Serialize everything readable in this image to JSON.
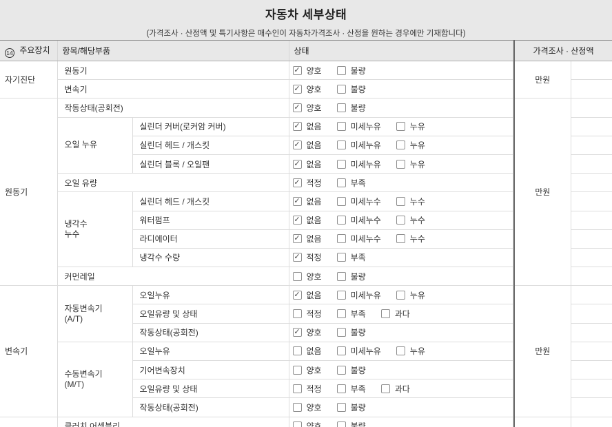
{
  "page": {
    "title": "자동차 세부상태",
    "subtitle": "(가격조사 · 산정액 및 특기사항은 매수인이 자동차가격조사 · 산정을 원하는 경우에만 기재합니다)"
  },
  "colors": {
    "page_background": "#e8e8e8",
    "cell_border": "#dcdcdc",
    "price_divider": "#666666"
  },
  "table": {
    "headers": {
      "device_badge": "14",
      "device": "주요장치",
      "item": "항목/해당부품",
      "status": "상태",
      "price": "가격조사 · 산정액"
    },
    "sections": [
      {
        "device": "자기진단",
        "price_unit": "만원",
        "rows": [
          {
            "item": "원동기",
            "options": [
              {
                "label": "양호",
                "checked": true
              },
              {
                "label": "불량",
                "checked": false
              }
            ]
          },
          {
            "item": "변속기",
            "options": [
              {
                "label": "양호",
                "checked": true
              },
              {
                "label": "불량",
                "checked": false
              }
            ]
          }
        ]
      },
      {
        "device": "원동기",
        "price_unit": "만원",
        "rows": [
          {
            "item": "작동상태(공회전)",
            "options": [
              {
                "label": "양호",
                "checked": true
              },
              {
                "label": "불량",
                "checked": false
              }
            ]
          },
          {
            "group": "오일 누유",
            "group_span": 3,
            "item": "실린더 커버(로커암 커버)",
            "options": [
              {
                "label": "없음",
                "checked": true
              },
              {
                "label": "미세누유",
                "checked": false
              },
              {
                "label": "누유",
                "checked": false
              }
            ]
          },
          {
            "item": "실린더 헤드 / 개스킷",
            "options": [
              {
                "label": "없음",
                "checked": true
              },
              {
                "label": "미세누유",
                "checked": false
              },
              {
                "label": "누유",
                "checked": false
              }
            ]
          },
          {
            "item": "실린더 블록 / 오일팬",
            "options": [
              {
                "label": "없음",
                "checked": true
              },
              {
                "label": "미세누유",
                "checked": false
              },
              {
                "label": "누유",
                "checked": false
              }
            ]
          },
          {
            "item": "오일 유량",
            "options": [
              {
                "label": "적정",
                "checked": true
              },
              {
                "label": "부족",
                "checked": false
              }
            ]
          },
          {
            "group": "냉각수\n누수",
            "group_span": 4,
            "item": "실린더 헤드 / 개스킷",
            "options": [
              {
                "label": "없음",
                "checked": true
              },
              {
                "label": "미세누수",
                "checked": false
              },
              {
                "label": "누수",
                "checked": false
              }
            ]
          },
          {
            "item": "워터펌프",
            "options": [
              {
                "label": "없음",
                "checked": true
              },
              {
                "label": "미세누수",
                "checked": false
              },
              {
                "label": "누수",
                "checked": false
              }
            ]
          },
          {
            "item": "라디에이터",
            "options": [
              {
                "label": "없음",
                "checked": true
              },
              {
                "label": "미세누수",
                "checked": false
              },
              {
                "label": "누수",
                "checked": false
              }
            ]
          },
          {
            "item": "냉각수 수량",
            "options": [
              {
                "label": "적정",
                "checked": true
              },
              {
                "label": "부족",
                "checked": false
              }
            ]
          },
          {
            "item": "커먼레일",
            "options": [
              {
                "label": "양호",
                "checked": false
              },
              {
                "label": "불량",
                "checked": false
              }
            ]
          }
        ]
      },
      {
        "device": "변속기",
        "price_unit": "만원",
        "rows": [
          {
            "group": "자동변속기\n(A/T)",
            "group_span": 3,
            "item": "오일누유",
            "options": [
              {
                "label": "없음",
                "checked": true
              },
              {
                "label": "미세누유",
                "checked": false
              },
              {
                "label": "누유",
                "checked": false
              }
            ]
          },
          {
            "item": "오일유량 및 상태",
            "options": [
              {
                "label": "적정",
                "checked": false
              },
              {
                "label": "부족",
                "checked": false
              },
              {
                "label": "과다",
                "checked": false
              }
            ]
          },
          {
            "item": "작동상태(공회전)",
            "options": [
              {
                "label": "양호",
                "checked": true
              },
              {
                "label": "불량",
                "checked": false
              }
            ]
          },
          {
            "group": "수동변속기\n(M/T)",
            "group_span": 4,
            "item": "오일누유",
            "options": [
              {
                "label": "없음",
                "checked": false
              },
              {
                "label": "미세누유",
                "checked": false
              },
              {
                "label": "누유",
                "checked": false
              }
            ]
          },
          {
            "item": "기어변속장치",
            "options": [
              {
                "label": "양호",
                "checked": false
              },
              {
                "label": "불량",
                "checked": false
              }
            ]
          },
          {
            "item": "오일유량 및 상태",
            "options": [
              {
                "label": "적정",
                "checked": false
              },
              {
                "label": "부족",
                "checked": false
              },
              {
                "label": "과다",
                "checked": false
              }
            ]
          },
          {
            "item": "작동상태(공회전)",
            "options": [
              {
                "label": "양호",
                "checked": false
              },
              {
                "label": "불량",
                "checked": false
              }
            ]
          }
        ]
      },
      {
        "device": "",
        "price_unit": "",
        "rows": [
          {
            "item": "클러치 어셈블리",
            "options": [
              {
                "label": "양호",
                "checked": false
              },
              {
                "label": "불량",
                "checked": false
              }
            ]
          }
        ]
      }
    ],
    "checkmark_glyph": "✓"
  }
}
